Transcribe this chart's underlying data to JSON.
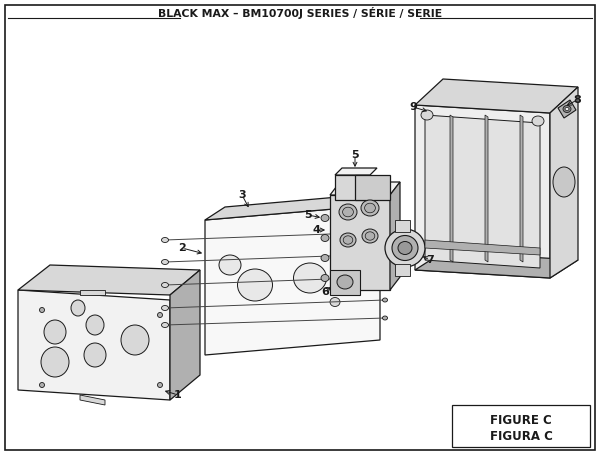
{
  "title": "BLACK MAX – BM10700J SERIES / SÉRIE / SERIE",
  "figure_label": "FIGURE C",
  "figura_label": "FIGURA C",
  "bg_color": "#ffffff",
  "lc": "#1a1a1a",
  "fc_light": "#f2f2f2",
  "fc_mid": "#d8d8d8",
  "fc_dark": "#b0b0b0",
  "fc_panel": "#efefef"
}
